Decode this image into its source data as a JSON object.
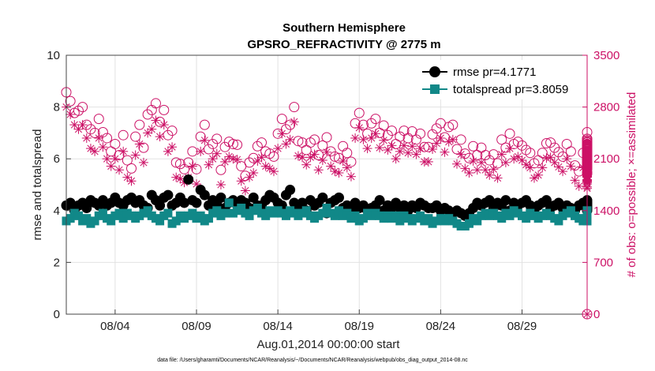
{
  "chart_data": {
    "type": "scatter",
    "title": "Southern Hemisphere",
    "subtitle": "GPSRO_REFRACTIVITY @ 2775 m",
    "xlabel": "Aug.01,2014 00:00:00 start",
    "ylabel": "rmse and totalspread",
    "ylabel_right": "# of obs: o=possible; ×=assimilated",
    "footer": "data file: /Users/gharamti/Documents/NCAR/Reanalysis/~/Documents/NCAR/Reanalysis/webpub/obs_diag_output_2014-08.nc",
    "xlim": [
      1,
      33
    ],
    "ylim": [
      0,
      10
    ],
    "ylim_right": [
      0,
      3500
    ],
    "x_ticks": [
      4,
      9,
      14,
      19,
      24,
      29
    ],
    "x_tick_labels": [
      "08/04",
      "08/09",
      "08/14",
      "08/19",
      "08/24",
      "08/29"
    ],
    "y_ticks": [
      0,
      2,
      4,
      6,
      8,
      10
    ],
    "y_tick_labels": [
      "0",
      "2",
      "4",
      "6",
      "8",
      "10"
    ],
    "y_ticks_right": [
      0,
      700,
      1400,
      2100,
      2800,
      3500
    ],
    "y_tick_labels_right": [
      "0",
      "700",
      "1400",
      "2100",
      "2800",
      "3500"
    ],
    "grid": true,
    "legend_position": "top-right",
    "sampling": "4 analyses per day (6-hourly), Aug 01 00Z to Aug 31 18Z; one trailing point at x=33",
    "series": [
      {
        "name": "rmse pr=4.1771",
        "axis": "left",
        "marker": "filled-circle",
        "color": "#000000",
        "values": [
          4.2,
          4.3,
          4.0,
          4.2,
          4.3,
          4.1,
          4.4,
          4.3,
          4.2,
          4.4,
          4.2,
          4.3,
          4.5,
          4.3,
          4.2,
          4.4,
          4.5,
          4.3,
          4.4,
          4.2,
          4.1,
          4.6,
          4.4,
          4.2,
          4.5,
          4.6,
          4.2,
          4.3,
          4.5,
          4.3,
          5.2,
          4.4,
          4.3,
          4.8,
          4.6,
          4.2,
          4.4,
          4.3,
          4.5,
          4.1,
          4.3,
          4.4,
          4.2,
          4.4,
          4.3,
          4.1,
          4.5,
          4.2,
          4.2,
          4.4,
          4.6,
          4.5,
          4.3,
          4.2,
          4.6,
          4.8,
          4.3,
          4.1,
          4.3,
          4.0,
          4.4,
          4.2,
          4.3,
          4.5,
          3.9,
          4.3,
          4.4,
          4.5,
          4.1,
          4.2,
          4.0,
          4.3,
          4.1,
          4.2,
          4.0,
          4.1,
          4.2,
          4.4,
          4.0,
          4.2,
          4.1,
          4.3,
          4.1,
          4.2,
          4.0,
          4.2,
          4.1,
          4.3,
          4.2,
          4.1,
          4.1,
          4.2,
          4.0,
          4.1,
          4.0,
          3.9,
          4.0,
          3.9,
          3.8,
          3.9,
          4.1,
          4.3,
          4.2,
          4.3,
          4.4,
          4.1,
          4.3,
          4.2,
          4.4,
          4.0,
          4.3,
          4.2,
          4.3,
          4.4,
          4.2,
          4.0,
          4.2,
          4.3,
          4.4,
          4.1,
          4.2,
          4.3,
          4.1,
          4.2,
          4.1,
          4.0,
          4.2,
          4.3,
          4.3,
          4.4,
          4.3,
          4.2,
          4.1,
          4.2,
          4.3,
          4.3,
          4.0,
          4.2,
          4.1,
          4.2,
          4.3,
          4.2,
          4.3,
          4.3,
          4.2,
          4.1,
          4.3,
          4.2,
          4.1,
          4.2,
          4.3,
          4.3,
          4.2,
          4.1,
          4.2,
          4.3,
          4.3,
          4.2,
          4.3,
          4.2,
          4.1,
          4.2,
          4.3,
          4.2,
          4.3,
          4.2,
          4.1,
          4.2,
          4.3,
          4.2,
          4.3,
          4.2,
          4.1,
          4.2,
          4.3,
          4.2,
          4.3,
          4.2,
          4.1,
          4.2,
          4.3,
          4.2,
          4.3,
          4.2,
          4.1,
          4.2,
          4.3,
          4.2,
          4.3,
          4.2,
          4.1,
          4.2,
          4.3,
          4.2,
          4.3,
          4.2,
          4.1,
          4.2,
          4.3,
          4.2,
          4.3,
          4.2,
          4.1,
          4.2,
          4.3,
          4.2,
          4.3,
          4.2,
          4.1,
          4.2,
          4.3,
          4.2,
          4.3,
          4.2,
          4.1,
          4.2,
          4.3,
          4.2,
          4.3,
          4.2,
          4.1,
          4.2,
          4.3,
          4.2,
          4.3,
          4.2,
          4.1,
          4.2,
          4.3,
          4.2,
          4.3,
          4.2,
          4.1,
          4.2,
          4.3,
          4.2,
          4.3,
          4.2,
          4.1,
          4.2,
          4.3,
          4.2,
          4.3,
          4.2,
          4.1,
          4.2,
          4.3,
          4.2,
          4.3,
          4.2,
          4.1,
          4.2,
          4.3,
          4.2,
          4.3,
          4.2,
          4.1,
          4.2,
          4.3,
          4.2,
          4.3,
          4.2,
          4.1,
          4.2,
          4.3,
          4.2,
          4.3,
          4.2,
          4.1,
          4.2,
          4.3,
          4.2,
          4.3,
          4.2,
          4.1,
          4.2,
          4.3,
          4.2
        ]
      },
      {
        "name": "totalspread pr=3.8059",
        "axis": "left",
        "marker": "filled-square",
        "color": "#118888",
        "values": [
          3.6,
          3.7,
          3.9,
          3.8,
          3.6,
          3.7,
          3.5,
          3.6,
          3.8,
          3.9,
          3.7,
          3.6,
          3.8,
          3.9,
          3.7,
          3.9,
          3.8,
          3.7,
          3.8,
          3.9,
          4.0,
          3.8,
          3.7,
          3.6,
          3.8,
          3.9,
          3.5,
          3.6,
          3.8,
          3.7,
          3.8,
          3.9,
          3.7,
          3.8,
          3.6,
          3.7,
          3.9,
          4.0,
          3.8,
          3.9,
          4.3,
          3.9,
          4.0,
          4.1,
          3.9,
          3.8,
          4.0,
          4.1,
          3.9,
          3.8,
          4.0,
          3.9,
          4.0,
          3.9,
          3.8,
          4.0,
          3.9,
          3.8,
          3.9,
          4.0,
          3.8,
          3.7,
          3.8,
          3.9,
          4.1,
          3.9,
          3.8,
          4.0,
          3.8,
          3.9,
          3.7,
          3.8,
          3.6,
          3.7,
          3.9,
          3.8,
          3.9,
          3.8,
          3.7,
          3.8,
          3.7,
          3.8,
          3.6,
          3.8,
          3.7,
          3.6,
          3.7,
          3.8,
          3.6,
          3.7,
          3.5,
          3.6,
          3.7,
          3.6,
          3.7,
          3.6,
          3.5,
          3.4,
          3.4,
          3.5,
          3.7,
          3.6,
          3.8,
          3.9,
          3.8,
          3.9,
          3.8,
          3.7,
          3.9,
          3.8,
          4.0,
          3.9,
          3.8,
          3.7,
          3.9,
          3.8,
          3.7,
          3.8,
          3.9,
          3.8,
          3.7,
          3.6,
          3.8,
          3.9,
          4.0,
          3.8,
          3.7,
          3.6,
          3.8,
          3.9,
          3.8,
          3.7,
          3.6,
          3.7,
          3.8,
          3.7,
          3.6,
          3.8,
          3.9,
          4.0,
          3.9,
          3.8,
          3.7,
          3.6,
          3.8,
          3.7,
          3.6,
          3.7,
          3.8,
          3.7,
          3.6,
          3.7,
          3.8,
          3.7,
          3.6,
          3.7,
          3.8,
          3.9,
          3.8,
          3.7,
          3.6,
          3.7,
          3.8,
          3.7,
          3.6,
          3.7,
          3.8,
          3.7,
          3.6,
          3.7,
          3.8,
          3.9,
          3.8,
          3.7,
          3.6,
          3.7,
          3.8,
          3.7,
          3.6,
          3.7,
          3.8,
          3.7,
          3.6,
          3.7,
          3.8,
          3.7,
          3.6,
          3.7,
          3.8,
          3.7,
          3.6,
          3.7,
          3.8,
          3.7,
          3.6,
          3.7,
          3.8,
          3.7,
          3.6,
          3.7,
          3.8,
          3.7,
          3.6,
          3.7,
          3.8,
          3.7,
          3.6,
          3.7,
          3.8,
          3.7,
          3.6,
          3.7,
          3.8,
          3.7,
          3.6,
          3.7,
          3.8,
          3.7,
          3.6,
          3.7,
          3.8,
          3.7,
          3.6,
          3.7,
          3.8,
          3.7,
          3.6,
          3.7,
          3.8,
          3.7,
          3.6,
          3.7,
          3.8,
          3.7,
          3.6,
          3.7,
          3.8,
          3.7,
          3.6,
          3.7,
          3.8,
          3.7,
          3.6,
          3.7,
          3.8,
          3.7,
          3.6,
          3.7,
          3.8,
          3.7,
          3.6,
          3.7,
          3.8,
          3.7,
          3.6,
          3.7,
          3.8,
          3.7,
          3.6,
          3.7,
          3.8,
          3.7,
          3.6,
          3.7,
          3.8,
          3.7,
          3.6,
          3.7,
          3.8,
          3.7,
          3.6,
          3.7,
          3.8,
          3.7,
          3.6,
          3.7,
          3.8,
          3.7,
          3.6,
          3.7,
          3.8,
          3.7,
          3.6
        ]
      },
      {
        "name": "obs possible",
        "axis": "right",
        "marker": "open-circle",
        "color": "#cc1166",
        "values": [
          3000,
          2880,
          2720,
          2750,
          2800,
          2560,
          2500,
          2450,
          2640,
          2460,
          2380,
          2200,
          2300,
          2150,
          2420,
          2080,
          1970,
          2400,
          2560,
          2250,
          2700,
          2760,
          2850,
          2600,
          2760,
          2420,
          2480,
          2050,
          2030,
          1960,
          2050,
          2200,
          1960,
          2400,
          2560,
          2230,
          2300,
          2370,
          1950,
          2260,
          2330,
          2300,
          2290,
          2000,
          1870,
          2050,
          2110,
          2270,
          2320,
          2200,
          2170,
          2130,
          2440,
          2640,
          2500,
          2560,
          2800,
          2340,
          2320,
          2220,
          2320,
          2360,
          2150,
          2280,
          2390,
          2200,
          2130,
          2110,
          2270,
          2180,
          2060,
          2580,
          2720,
          2560,
          2440,
          2580,
          2640,
          2450,
          2550,
          2420,
          2480,
          2300,
          2400,
          2480,
          2380,
          2470,
          2360,
          2440,
          2260,
          2260,
          2430,
          2510,
          2580,
          2390,
          2530,
          2560,
          2230,
          2360,
          2170,
          2110,
          2270,
          2150,
          2250,
          2150,
          2080,
          2160,
          2040,
          2360,
          2250,
          2440,
          2300,
          2330,
          2280,
          2220,
          2180,
          2040,
          2080,
          2180,
          2310,
          2320,
          2250,
          2190,
          2130,
          2300,
          2200,
          2010,
          1930,
          2180,
          2280,
          2460,
          2190,
          2300,
          2140,
          2080,
          2270,
          2320,
          2050,
          2090,
          2200,
          1960,
          2110,
          2300,
          2370,
          2200,
          2290,
          2270,
          2150,
          2060,
          2280,
          2290,
          2210,
          2120,
          2000,
          1900,
          1920,
          2080,
          2010,
          1980,
          2210,
          2270,
          2330,
          2170,
          2080,
          2260,
          2240,
          2370,
          2290,
          2130,
          2250,
          2190,
          1990,
          2130,
          2270,
          2120,
          2060,
          2190,
          2350,
          2260,
          2200,
          2230,
          2150,
          2020,
          2120,
          2240,
          2300,
          2110,
          2070,
          2190,
          2250,
          2150,
          2080,
          2190,
          2200,
          2170,
          2090,
          2180,
          2260,
          2190,
          2200,
          2110,
          2190,
          2230,
          2150,
          2080,
          2180,
          2200,
          2170,
          2060,
          2140,
          2190,
          2120,
          2010,
          2080,
          2160,
          2200,
          2130,
          2070,
          2110,
          2200,
          2190,
          2140,
          2080,
          2130,
          2190,
          2260,
          2150,
          2100,
          2160,
          2230,
          2190,
          2120,
          2080,
          2130,
          2170,
          2200,
          2140,
          2110,
          2180,
          2230,
          2150,
          2080,
          2150,
          2200,
          2170,
          2110,
          2140,
          2200,
          2160,
          2090,
          2120,
          2190,
          2230,
          2150,
          2080,
          2160,
          2200,
          2130,
          2100,
          2150,
          2190,
          2120,
          2070,
          2130,
          2190,
          2200,
          2140,
          2080,
          2150,
          2210,
          2160,
          2100,
          2140,
          2200,
          2180,
          2120,
          2080,
          2150,
          0
        ]
      },
      {
        "name": "obs assimilated",
        "axis": "right",
        "marker": "asterisk",
        "color": "#cc1166",
        "values": [
          2800,
          2700,
          2560,
          2500,
          2560,
          2380,
          2240,
          2200,
          2380,
          2260,
          2100,
          2000,
          2100,
          1950,
          2200,
          1850,
          1800,
          2150,
          2300,
          2050,
          2450,
          2500,
          2620,
          2400,
          2560,
          2200,
          2260,
          1850,
          1830,
          1780,
          1850,
          2000,
          1760,
          2200,
          2350,
          2020,
          2100,
          2170,
          1750,
          2060,
          2130,
          2100,
          2090,
          1800,
          1670,
          1850,
          1910,
          2070,
          2120,
          2000,
          1970,
          1930,
          2240,
          2440,
          2300,
          2360,
          2600,
          2140,
          2120,
          2020,
          2120,
          2160,
          1950,
          2080,
          2190,
          2000,
          1930,
          1910,
          2070,
          1980,
          1860,
          2380,
          2520,
          2360,
          2240,
          2380,
          2440,
          2250,
          2350,
          2220,
          2280,
          2100,
          2200,
          2280,
          2180,
          2270,
          2160,
          2240,
          2060,
          2060,
          2230,
          2310,
          2380,
          2190,
          2330,
          2360,
          2030,
          2160,
          1970,
          1910,
          2070,
          1950,
          2050,
          1950,
          1880,
          1960,
          1840,
          2160,
          2050,
          2240,
          2100,
          2130,
          2080,
          2020,
          1980,
          1840,
          1880,
          1980,
          2110,
          2120,
          2050,
          1990,
          1930,
          2100,
          2000,
          1810,
          1730,
          1980,
          2080,
          2260,
          1990,
          2100,
          1940,
          1880,
          2070,
          2120,
          1850,
          1890,
          2000,
          1760,
          1910,
          2100,
          2170,
          2000,
          2090,
          2070,
          1950,
          1860,
          2080,
          2090,
          2010,
          1920,
          1800,
          1700,
          1720,
          1880,
          1810,
          1780,
          2010,
          2070,
          2130,
          1970,
          1880,
          2060,
          2040,
          2170,
          2090,
          1930,
          2050,
          1990,
          1790,
          1930,
          2070,
          1920,
          1860,
          1990,
          2150,
          2060,
          2000,
          2030,
          1950,
          1820,
          1920,
          2040,
          2100,
          1910,
          1870,
          1990,
          2050,
          1950,
          1880,
          1990,
          2000,
          1970,
          1890,
          1980,
          2060,
          1990,
          2000,
          1910,
          1990,
          2030,
          1950,
          1880,
          1980,
          2000,
          1970,
          1860,
          1940,
          1990,
          1920,
          1810,
          1880,
          1960,
          2000,
          1930,
          1870,
          1910,
          2000,
          1990,
          1940,
          1880,
          1930,
          1990,
          2060,
          1950,
          1900,
          1960,
          2030,
          1990,
          1920,
          1880,
          1930,
          1970,
          2000,
          1940,
          1910,
          1980,
          2030,
          1950,
          1880,
          1950,
          2000,
          1970,
          1910,
          1940,
          2000,
          1960,
          1890,
          1920,
          1990,
          2030,
          1950,
          1880,
          1960,
          2000,
          1930,
          1900,
          1950,
          1990,
          1920,
          1870,
          1930,
          1990,
          2000,
          1940,
          1880,
          1950,
          2010,
          1960,
          1900,
          1940,
          2000,
          1980,
          1920,
          1880,
          1950,
          0
        ]
      }
    ]
  }
}
